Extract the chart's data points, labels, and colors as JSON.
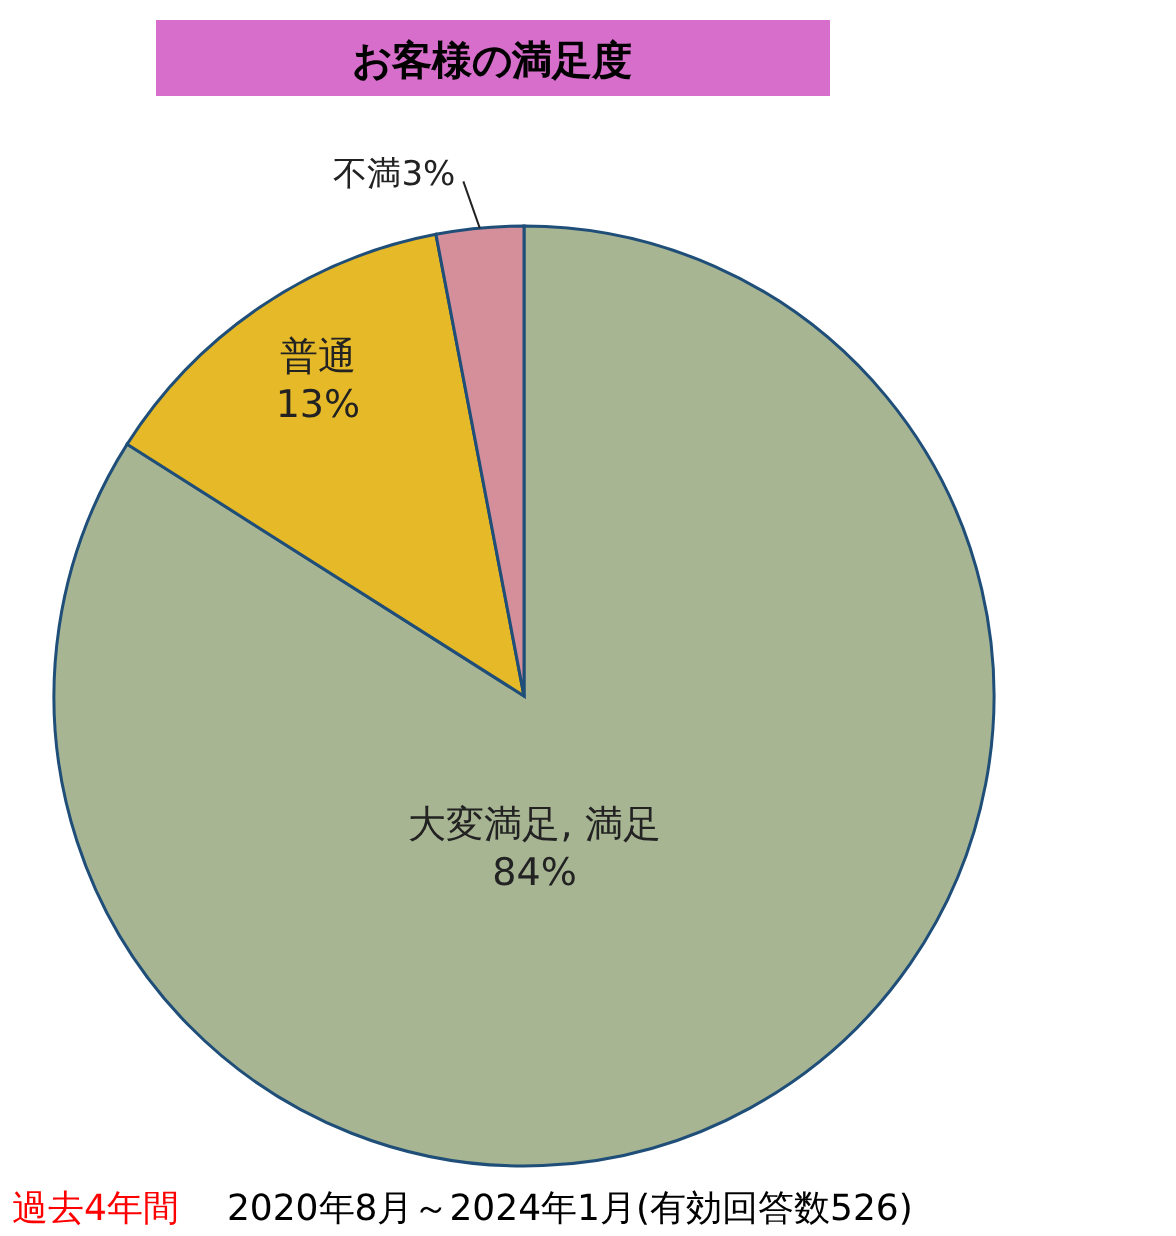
{
  "chart_data": {
    "type": "pie",
    "title": "お客様の満足度",
    "categories": [
      "大変満足, 満足",
      "普通",
      "不満"
    ],
    "values": [
      84,
      13,
      3
    ],
    "value_labels": [
      "84%",
      "13%",
      "3%"
    ],
    "colors": [
      "#a7b593",
      "#e6b929",
      "#d58f9b"
    ],
    "annotations": [
      "過去4年間",
      "2020年8月～2024年1月(有効回答数526)"
    ]
  }
}
